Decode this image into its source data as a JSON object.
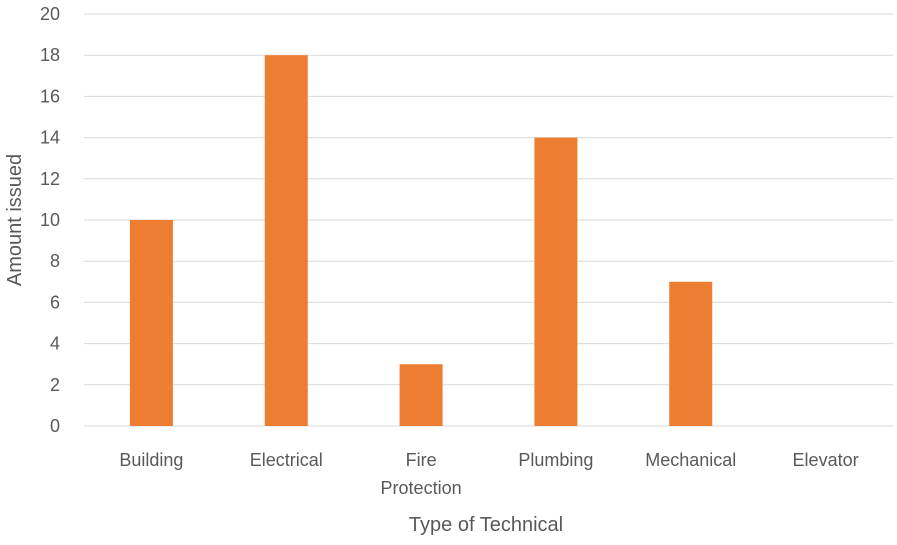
{
  "chart_data": {
    "type": "bar",
    "title": "",
    "xlabel": "Type of Technical",
    "ylabel": "Amount issued",
    "categories": [
      "Building",
      "Electrical",
      "Fire Protection",
      "Plumbing",
      "Mechanical",
      "Elevator"
    ],
    "category_label_lines": [
      [
        "Building"
      ],
      [
        "Electrical"
      ],
      [
        "Fire",
        "Protection"
      ],
      [
        "Plumbing"
      ],
      [
        "Mechanical"
      ],
      [
        "Elevator"
      ]
    ],
    "values": [
      10,
      18,
      3,
      14,
      7,
      0
    ],
    "ylim": [
      0,
      20
    ],
    "yticks": [
      0,
      2,
      4,
      6,
      8,
      10,
      12,
      14,
      16,
      18,
      20
    ],
    "grid": true,
    "legend": "none",
    "colors": {
      "bar": "#ED7D31",
      "grid": "#D9D9D9",
      "text": "#595959"
    }
  }
}
